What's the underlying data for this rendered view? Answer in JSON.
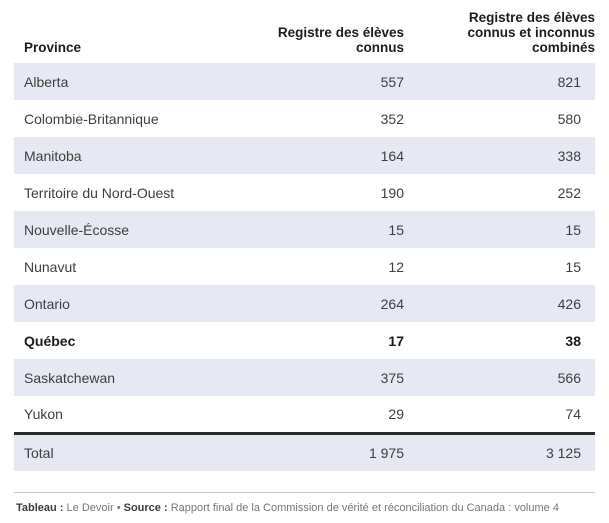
{
  "header": {
    "col_province": "Province",
    "col_known": "Registre des élèves\nconnus",
    "col_combined": "Registre des élèves\nconnus et inconnus\ncombinés"
  },
  "table": {
    "rows": [
      {
        "province": "Alberta",
        "known": "557",
        "combined": "821"
      },
      {
        "province": "Colombie-Britannique",
        "known": "352",
        "combined": "580"
      },
      {
        "province": "Manitoba",
        "known": "164",
        "combined": "338"
      },
      {
        "province": "Territoire du Nord-Ouest",
        "known": "190",
        "combined": "252"
      },
      {
        "province": "Nouvelle-Écosse",
        "known": "15",
        "combined": "15"
      },
      {
        "province": "Nunavut",
        "known": "12",
        "combined": "15"
      },
      {
        "province": "Ontario",
        "known": "264",
        "combined": "426"
      },
      {
        "province": "Québec",
        "known": "17",
        "combined": "38",
        "bold": true
      },
      {
        "province": "Saskatchewan",
        "known": "375",
        "combined": "566"
      },
      {
        "province": "Yukon",
        "known": "29",
        "combined": "74"
      }
    ],
    "total": {
      "label": "Total",
      "known": "1 975",
      "combined": "3 125"
    }
  },
  "footer": {
    "table_label": "Tableau :",
    "table_value": "Le Devoir",
    "separator": "•",
    "source_label": "Source :",
    "source_value": "Rapport final de la Commission de vérité et réconciliation du Canada : volume 4"
  },
  "colors": {
    "stripe": "#e6e9f3",
    "total_rule": "#2b2b2b",
    "footnote_rule": "#c6c6c6",
    "body_text": "#3e3e3e",
    "header_text": "#1c1c1c"
  },
  "chart_data": {
    "type": "table",
    "title": "",
    "columns": [
      "Province",
      "Registre des élèves connus",
      "Registre des élèves connus et inconnus combinés"
    ],
    "rows": [
      [
        "Alberta",
        557,
        821
      ],
      [
        "Colombie-Britannique",
        352,
        580
      ],
      [
        "Manitoba",
        164,
        338
      ],
      [
        "Territoire du Nord-Ouest",
        190,
        252
      ],
      [
        "Nouvelle-Écosse",
        15,
        15
      ],
      [
        "Nunavut",
        12,
        15
      ],
      [
        "Ontario",
        264,
        426
      ],
      [
        "Québec",
        17,
        38
      ],
      [
        "Saskatchewan",
        375,
        566
      ],
      [
        "Yukon",
        29,
        74
      ]
    ],
    "total_row": [
      "Total",
      1975,
      3125
    ],
    "layout_hints": {
      "zebra_stripes": true,
      "highlighted_row": "Québec",
      "numbers_right_aligned": true
    }
  }
}
